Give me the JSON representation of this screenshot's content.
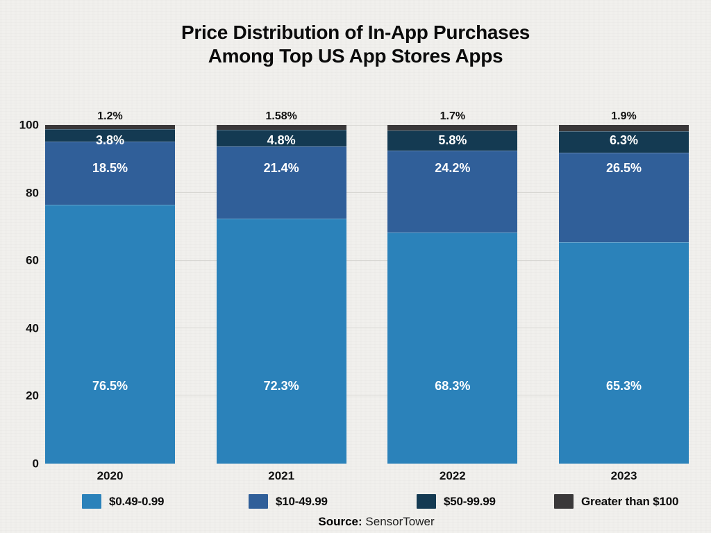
{
  "title": {
    "line1": "Price Distribution of In-App Purchases",
    "line2": "Among Top US App Stores Apps"
  },
  "chart_data": {
    "type": "bar",
    "stacked": true,
    "title": "Price Distribution of In-App Purchases Among Top US App Stores Apps",
    "categories": [
      "2020",
      "2021",
      "2022",
      "2023"
    ],
    "series": [
      {
        "name": "$0.49-0.99",
        "color": "#2b82ba",
        "values": [
          76.5,
          72.3,
          68.3,
          65.3
        ],
        "value_labels": [
          "76.5%",
          "72.3%",
          "68.3%",
          "65.3%"
        ]
      },
      {
        "name": "$10-49.99",
        "color": "#305f99",
        "values": [
          18.5,
          21.4,
          24.2,
          26.5
        ],
        "value_labels": [
          "18.5%",
          "21.4%",
          "24.2%",
          "26.5%"
        ]
      },
      {
        "name": "$50-99.99",
        "color": "#143a52",
        "values": [
          3.8,
          4.8,
          5.8,
          6.3
        ],
        "value_labels": [
          "3.8%",
          "4.8%",
          "5.8%",
          "6.3%"
        ]
      },
      {
        "name": "Greater than $100",
        "color": "#3a3839",
        "values": [
          1.2,
          1.58,
          1.7,
          1.9
        ],
        "value_labels": [
          "1.2%",
          "1.58%",
          "1.7%",
          "1.9%"
        ]
      }
    ],
    "xlabel": "",
    "ylabel": "",
    "ylim": [
      0,
      100
    ],
    "yticks": [
      0,
      20,
      40,
      60,
      80,
      100
    ],
    "grid": true,
    "legend_position": "bottom"
  },
  "source": {
    "label": "Source:",
    "value": "SensorTower"
  },
  "colors": {
    "background": "#f1f0ed",
    "gridline": "#d7d6d2",
    "axis_text": "#111111",
    "bar_label_light": "#ffffff",
    "bar_label_dark": "#111111"
  }
}
